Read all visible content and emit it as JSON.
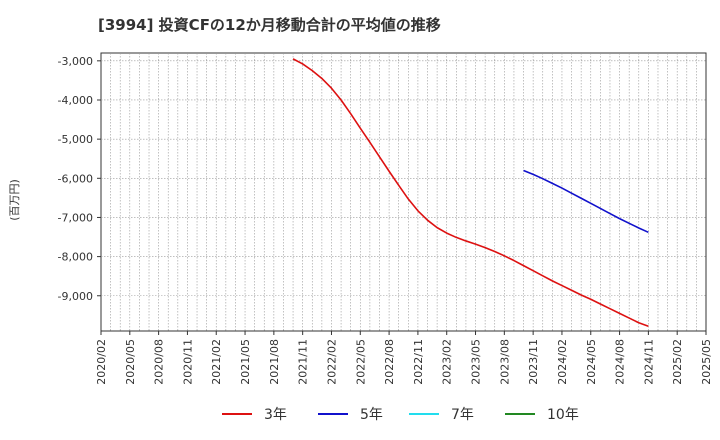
{
  "chart_data": {
    "type": "line",
    "title": "[3994]  投資CFの12か月移動合計の平均値の推移",
    "ylabel": "(百万円)",
    "xlabel": "",
    "ylim": [
      -9900,
      -2800
    ],
    "yticks": [
      -3000,
      -4000,
      -5000,
      -6000,
      -7000,
      -8000,
      -9000
    ],
    "ytick_labels": [
      "-3,000",
      "-4,000",
      "-5,000",
      "-6,000",
      "-7,000",
      "-8,000",
      "-9,000"
    ],
    "x_range": [
      "2020-02",
      "2025-05"
    ],
    "xtick_labels": [
      "2020/02",
      "2020/05",
      "2020/08",
      "2020/11",
      "2021/02",
      "2021/05",
      "2021/08",
      "2021/11",
      "2022/02",
      "2022/05",
      "2022/08",
      "2022/11",
      "2023/02",
      "2023/05",
      "2023/08",
      "2023/11",
      "2024/02",
      "2024/05",
      "2024/08",
      "2024/11",
      "2025/02",
      "2025/05"
    ],
    "grid": true,
    "legend_position": "bottom",
    "series": [
      {
        "name": "3年",
        "color": "#dd1111",
        "points": [
          [
            "2021-10",
            -2950
          ],
          [
            "2021-11",
            -3080
          ],
          [
            "2021-12",
            -3250
          ],
          [
            "2022-01",
            -3450
          ],
          [
            "2022-02",
            -3700
          ],
          [
            "2022-03",
            -4000
          ],
          [
            "2022-04",
            -4350
          ],
          [
            "2022-05",
            -4720
          ],
          [
            "2022-06",
            -5080
          ],
          [
            "2022-07",
            -5450
          ],
          [
            "2022-08",
            -5820
          ],
          [
            "2022-09",
            -6180
          ],
          [
            "2022-10",
            -6530
          ],
          [
            "2022-11",
            -6830
          ],
          [
            "2022-12",
            -7070
          ],
          [
            "2023-01",
            -7260
          ],
          [
            "2023-02",
            -7400
          ],
          [
            "2023-03",
            -7510
          ],
          [
            "2023-04",
            -7600
          ],
          [
            "2023-05",
            -7680
          ],
          [
            "2023-06",
            -7770
          ],
          [
            "2023-07",
            -7870
          ],
          [
            "2023-08",
            -7980
          ],
          [
            "2023-09",
            -8100
          ],
          [
            "2023-10",
            -8230
          ],
          [
            "2023-11",
            -8360
          ],
          [
            "2023-12",
            -8490
          ],
          [
            "2024-01",
            -8620
          ],
          [
            "2024-02",
            -8740
          ],
          [
            "2024-03",
            -8860
          ],
          [
            "2024-04",
            -8980
          ],
          [
            "2024-05",
            -9090
          ],
          [
            "2024-06",
            -9210
          ],
          [
            "2024-07",
            -9330
          ],
          [
            "2024-08",
            -9450
          ],
          [
            "2024-09",
            -9570
          ],
          [
            "2024-10",
            -9690
          ],
          [
            "2024-11",
            -9780
          ]
        ]
      },
      {
        "name": "5年",
        "color": "#1111cc",
        "points": [
          [
            "2023-10",
            -5800
          ],
          [
            "2023-11",
            -5900
          ],
          [
            "2023-12",
            -6010
          ],
          [
            "2024-01",
            -6130
          ],
          [
            "2024-02",
            -6250
          ],
          [
            "2024-03",
            -6380
          ],
          [
            "2024-04",
            -6510
          ],
          [
            "2024-05",
            -6640
          ],
          [
            "2024-06",
            -6770
          ],
          [
            "2024-07",
            -6900
          ],
          [
            "2024-08",
            -7030
          ],
          [
            "2024-09",
            -7150
          ],
          [
            "2024-10",
            -7270
          ],
          [
            "2024-11",
            -7380
          ]
        ]
      },
      {
        "name": "7年",
        "color": "#22ddee",
        "points": []
      },
      {
        "name": "10年",
        "color": "#228822",
        "points": []
      }
    ]
  }
}
